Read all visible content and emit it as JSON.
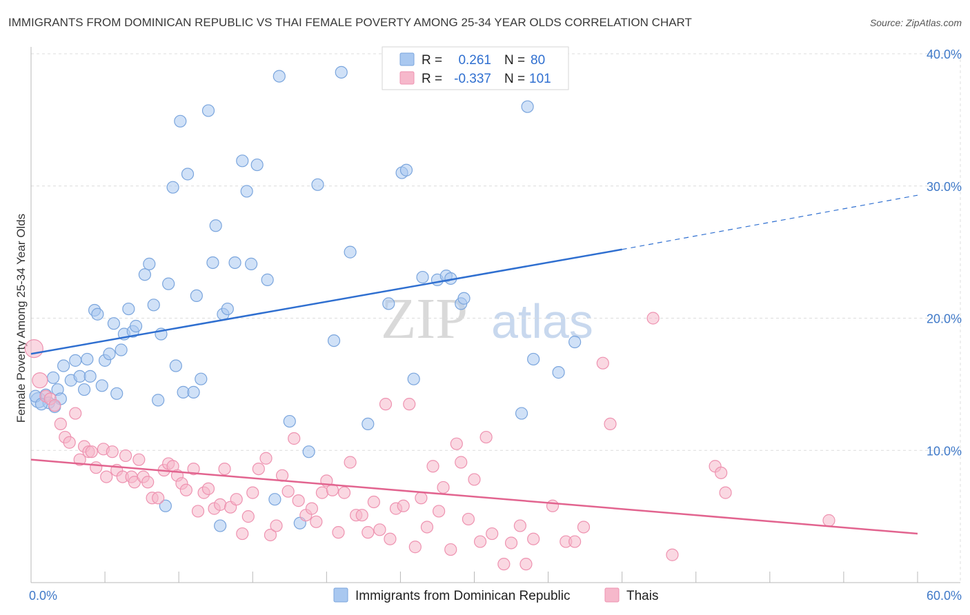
{
  "chart_data": {
    "type": "scatter",
    "title": "IMMIGRANTS FROM DOMINICAN REPUBLIC VS THAI FEMALE POVERTY AMONG 25-34 YEAR OLDS CORRELATION CHART",
    "source": "Source: ZipAtlas.com",
    "xlabel": "",
    "ylabel": "Female Poverty Among 25-34 Year Olds",
    "xlim": [
      0,
      60
    ],
    "ylim": [
      0,
      40
    ],
    "x_tick_labels": [
      "0.0%",
      "60.0%"
    ],
    "y_ticks": [
      10,
      20,
      30,
      40
    ],
    "y_tick_labels": [
      "10.0%",
      "20.0%",
      "30.0%",
      "40.0%"
    ],
    "watermark": {
      "zip": "ZIP",
      "atlas": "atlas"
    },
    "colors": {
      "blue_fill": "#a9c8f0",
      "blue_stroke": "#7aa5dd",
      "blue_line": "#2f6fd0",
      "pink_fill": "#f6b8cb",
      "pink_stroke": "#ee92b0",
      "pink_line": "#e2648f",
      "tick_text": "#3f79c8",
      "grid": "#dcdcdc"
    },
    "legend": {
      "entries": [
        {
          "r_label": "R =",
          "r_value": "0.261",
          "n_label": "N =",
          "n_value": "80"
        },
        {
          "r_label": "R =",
          "r_value": "-0.337",
          "n_label": "N =",
          "n_value": "101"
        }
      ]
    },
    "series": [
      {
        "name": "Immigrants from Dominican Republic",
        "trend": {
          "x0": 0,
          "y0": 17.3,
          "x1": 40,
          "y1": 25.2,
          "dash_to_x": 60,
          "dash_to_y": 29.3
        },
        "points": [
          [
            0.5,
            13.8
          ],
          [
            1.0,
            14.2
          ],
          [
            1.2,
            13.6
          ],
          [
            1.5,
            15.5
          ],
          [
            1.8,
            14.6
          ],
          [
            2.0,
            13.9
          ],
          [
            2.2,
            16.4
          ],
          [
            2.7,
            15.3
          ],
          [
            3.0,
            16.8
          ],
          [
            3.3,
            15.6
          ],
          [
            3.6,
            14.6
          ],
          [
            3.8,
            16.9
          ],
          [
            4.0,
            15.6
          ],
          [
            4.3,
            20.6
          ],
          [
            4.5,
            20.3
          ],
          [
            4.8,
            14.9
          ],
          [
            5.0,
            16.8
          ],
          [
            5.3,
            17.3
          ],
          [
            5.6,
            19.6
          ],
          [
            5.8,
            14.3
          ],
          [
            6.1,
            17.6
          ],
          [
            6.3,
            18.8
          ],
          [
            6.6,
            20.7
          ],
          [
            6.9,
            19.0
          ],
          [
            7.1,
            19.4
          ],
          [
            7.7,
            23.3
          ],
          [
            8.0,
            24.1
          ],
          [
            8.3,
            21.0
          ],
          [
            8.6,
            13.8
          ],
          [
            8.8,
            18.8
          ],
          [
            9.1,
            5.8
          ],
          [
            9.3,
            22.6
          ],
          [
            9.6,
            29.9
          ],
          [
            9.8,
            16.4
          ],
          [
            10.1,
            34.9
          ],
          [
            10.3,
            14.4
          ],
          [
            10.6,
            30.9
          ],
          [
            11.0,
            14.4
          ],
          [
            11.2,
            21.7
          ],
          [
            11.5,
            15.4
          ],
          [
            12.0,
            35.7
          ],
          [
            12.3,
            24.2
          ],
          [
            12.5,
            27.0
          ],
          [
            12.8,
            4.3
          ],
          [
            13.0,
            20.3
          ],
          [
            13.3,
            20.7
          ],
          [
            13.8,
            24.2
          ],
          [
            14.3,
            31.9
          ],
          [
            14.6,
            29.6
          ],
          [
            14.9,
            24.1
          ],
          [
            15.3,
            31.6
          ],
          [
            16.0,
            22.9
          ],
          [
            16.5,
            6.3
          ],
          [
            16.8,
            38.3
          ],
          [
            17.5,
            12.2
          ],
          [
            18.2,
            4.5
          ],
          [
            18.8,
            9.9
          ],
          [
            19.4,
            30.1
          ],
          [
            20.5,
            18.3
          ],
          [
            21.0,
            38.6
          ],
          [
            21.6,
            25.0
          ],
          [
            22.8,
            12.0
          ],
          [
            24.2,
            21.1
          ],
          [
            25.1,
            31.0
          ],
          [
            25.4,
            31.2
          ],
          [
            25.9,
            15.4
          ],
          [
            26.5,
            23.1
          ],
          [
            27.5,
            22.9
          ],
          [
            28.1,
            23.2
          ],
          [
            28.4,
            23.0
          ],
          [
            29.1,
            21.1
          ],
          [
            29.3,
            21.5
          ],
          [
            33.2,
            12.8
          ],
          [
            33.6,
            36.0
          ],
          [
            34.0,
            16.9
          ],
          [
            35.7,
            15.9
          ],
          [
            36.8,
            18.2
          ],
          [
            0.3,
            14.1
          ],
          [
            0.7,
            13.5
          ],
          [
            1.6,
            13.3
          ]
        ]
      },
      {
        "name": "Thais",
        "trend": {
          "x0": 0,
          "y0": 9.3,
          "x1": 60,
          "y1": 3.7
        },
        "points": [
          [
            0.2,
            17.7
          ],
          [
            0.6,
            15.3
          ],
          [
            1.0,
            14.1
          ],
          [
            1.3,
            13.9
          ],
          [
            1.6,
            13.4
          ],
          [
            2.0,
            12.0
          ],
          [
            2.3,
            11.0
          ],
          [
            2.6,
            10.6
          ],
          [
            3.0,
            12.8
          ],
          [
            3.3,
            9.3
          ],
          [
            3.6,
            10.3
          ],
          [
            3.9,
            9.9
          ],
          [
            4.1,
            9.9
          ],
          [
            4.4,
            8.7
          ],
          [
            4.9,
            10.1
          ],
          [
            5.1,
            8.0
          ],
          [
            5.5,
            9.9
          ],
          [
            5.8,
            8.5
          ],
          [
            6.2,
            8.0
          ],
          [
            6.4,
            9.6
          ],
          [
            6.8,
            8.0
          ],
          [
            7.0,
            7.6
          ],
          [
            7.3,
            9.3
          ],
          [
            7.6,
            8.0
          ],
          [
            7.9,
            7.6
          ],
          [
            8.2,
            6.4
          ],
          [
            8.6,
            6.4
          ],
          [
            9.0,
            8.5
          ],
          [
            9.3,
            9.0
          ],
          [
            9.6,
            8.8
          ],
          [
            9.9,
            8.1
          ],
          [
            10.2,
            7.5
          ],
          [
            10.5,
            7.0
          ],
          [
            11.0,
            8.6
          ],
          [
            11.3,
            5.4
          ],
          [
            11.7,
            6.8
          ],
          [
            12.0,
            7.1
          ],
          [
            12.4,
            5.6
          ],
          [
            12.8,
            5.9
          ],
          [
            13.1,
            8.6
          ],
          [
            13.5,
            5.7
          ],
          [
            13.9,
            6.3
          ],
          [
            14.3,
            3.7
          ],
          [
            14.7,
            5.0
          ],
          [
            15.0,
            6.8
          ],
          [
            15.4,
            8.6
          ],
          [
            15.9,
            9.4
          ],
          [
            16.2,
            3.6
          ],
          [
            16.6,
            4.3
          ],
          [
            17.0,
            8.1
          ],
          [
            17.4,
            6.9
          ],
          [
            17.8,
            10.9
          ],
          [
            18.1,
            6.2
          ],
          [
            18.6,
            5.1
          ],
          [
            19.0,
            5.6
          ],
          [
            19.3,
            4.6
          ],
          [
            19.7,
            6.8
          ],
          [
            20.0,
            7.7
          ],
          [
            20.4,
            7.0
          ],
          [
            20.8,
            3.8
          ],
          [
            21.2,
            6.8
          ],
          [
            21.6,
            9.1
          ],
          [
            22.0,
            5.1
          ],
          [
            22.4,
            5.1
          ],
          [
            22.8,
            3.8
          ],
          [
            23.2,
            6.1
          ],
          [
            23.6,
            4.0
          ],
          [
            24.0,
            13.5
          ],
          [
            24.3,
            3.3
          ],
          [
            24.7,
            5.6
          ],
          [
            25.2,
            5.8
          ],
          [
            25.6,
            13.5
          ],
          [
            26.0,
            2.7
          ],
          [
            26.4,
            6.4
          ],
          [
            26.8,
            4.2
          ],
          [
            27.2,
            8.8
          ],
          [
            27.6,
            5.4
          ],
          [
            27.9,
            7.2
          ],
          [
            28.4,
            2.5
          ],
          [
            28.8,
            10.5
          ],
          [
            29.1,
            9.1
          ],
          [
            29.6,
            4.8
          ],
          [
            30.0,
            7.8
          ],
          [
            30.4,
            3.1
          ],
          [
            30.8,
            11.0
          ],
          [
            31.2,
            3.7
          ],
          [
            32.0,
            1.4
          ],
          [
            32.5,
            3.0
          ],
          [
            33.1,
            4.3
          ],
          [
            33.5,
            1.4
          ],
          [
            34.0,
            3.3
          ],
          [
            35.3,
            5.8
          ],
          [
            36.2,
            3.1
          ],
          [
            36.8,
            3.1
          ],
          [
            37.4,
            4.2
          ],
          [
            38.7,
            16.6
          ],
          [
            39.2,
            12.0
          ],
          [
            42.1,
            20.0
          ],
          [
            43.4,
            2.1
          ],
          [
            46.3,
            8.8
          ],
          [
            46.7,
            8.3
          ],
          [
            47.0,
            6.8
          ],
          [
            54.0,
            4.7
          ]
        ]
      }
    ]
  }
}
